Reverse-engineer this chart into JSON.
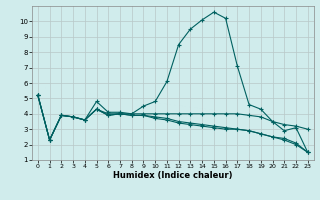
{
  "xlabel": "Humidex (Indice chaleur)",
  "bg_color": "#d0ecec",
  "grid_color": "#b8c8c8",
  "line_color": "#006060",
  "xlim": [
    -0.5,
    23.5
  ],
  "ylim": [
    1,
    11
  ],
  "yticks": [
    1,
    2,
    3,
    4,
    5,
    6,
    7,
    8,
    9,
    10
  ],
  "xticks": [
    0,
    1,
    2,
    3,
    4,
    5,
    6,
    7,
    8,
    9,
    10,
    11,
    12,
    13,
    14,
    15,
    16,
    17,
    18,
    19,
    20,
    21,
    22,
    23
  ],
  "series": [
    [
      5.2,
      2.3,
      3.9,
      3.8,
      3.6,
      4.8,
      4.1,
      4.1,
      4.0,
      4.5,
      4.8,
      6.1,
      8.5,
      9.5,
      10.1,
      10.6,
      10.2,
      7.1,
      4.6,
      4.3,
      3.5,
      2.9,
      3.1,
      1.5
    ],
    [
      5.2,
      2.3,
      3.9,
      3.8,
      3.6,
      4.3,
      4.0,
      4.0,
      4.0,
      4.0,
      4.0,
      4.0,
      4.0,
      4.0,
      4.0,
      4.0,
      4.0,
      4.0,
      3.9,
      3.8,
      3.5,
      3.3,
      3.2,
      3.0
    ],
    [
      5.2,
      2.3,
      3.9,
      3.8,
      3.6,
      4.3,
      3.9,
      4.0,
      3.9,
      3.9,
      3.8,
      3.7,
      3.5,
      3.4,
      3.3,
      3.2,
      3.1,
      3.0,
      2.9,
      2.7,
      2.5,
      2.3,
      2.0,
      1.5
    ],
    [
      5.2,
      2.3,
      3.9,
      3.8,
      3.6,
      4.3,
      3.9,
      4.0,
      3.9,
      3.9,
      3.7,
      3.6,
      3.4,
      3.3,
      3.2,
      3.1,
      3.0,
      3.0,
      2.9,
      2.7,
      2.5,
      2.4,
      2.1,
      1.5
    ]
  ]
}
